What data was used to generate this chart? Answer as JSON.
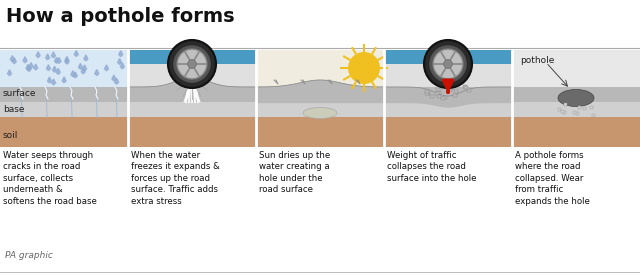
{
  "title": "How a pothole forms",
  "title_fontsize": 14,
  "background_color": "#ffffff",
  "stages": [
    {
      "caption": "Water seeps through\ncracks in the road\nsurface, collects\nunderneath &\nsoftens the road base"
    },
    {
      "caption": "When the water\nfreezes it expands &\nforces up the road\nsurface. Traffic adds\nextra stress"
    },
    {
      "caption": "Sun dries up the\nwater creating a\nhole under the\nroad surface"
    },
    {
      "caption": "Weight of traffic\ncollapses the road\nsurface into the hole"
    },
    {
      "caption": "A pothole forms\nwhere the road\ncollapsed. Wear\nfrom traffic\nexpands the hole"
    }
  ],
  "layer_colors": {
    "surface": "#b8b8b8",
    "base": "#d0d0d0",
    "soil": "#c8966e"
  },
  "sky_color": "#4a9bc4",
  "tire_outer": "#2a2a2a",
  "tire_rim": "#c0c0c0",
  "tire_rim_dark": "#888888",
  "water_color": "#a0b8d8",
  "rain_color": "#90aad0",
  "sun_color": "#f0c020",
  "sun_ray_color": "#f0c020",
  "arrow_color": "#cc1100",
  "crack_color": "#999999",
  "ice_color": "#e0eeff",
  "panel_divider": "#cccccc",
  "caption_fontsize": 6.2,
  "layer_label_fontsize": 6.5,
  "pa_text": "PA graphic",
  "pa_fontsize": 6.5
}
